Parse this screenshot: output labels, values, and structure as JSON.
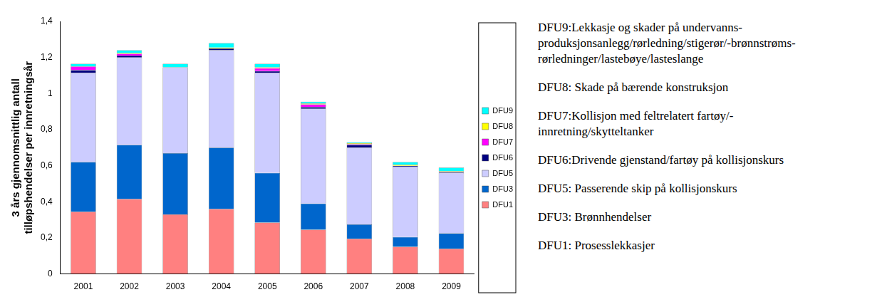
{
  "chart_data": {
    "type": "bar",
    "ylabel": [
      "3 års gjennomsnittlig antall",
      "tilløpshendelser per innretningsår"
    ],
    "categories": [
      "2001",
      "2002",
      "2003",
      "2004",
      "2005",
      "2006",
      "2007",
      "2008",
      "2009"
    ],
    "series": [
      {
        "name": "DFU1",
        "color": "#ff8080",
        "values": [
          0.345,
          0.415,
          0.33,
          0.36,
          0.285,
          0.245,
          0.195,
          0.15,
          0.14
        ]
      },
      {
        "name": "DFU3",
        "color": "#0066cc",
        "values": [
          0.275,
          0.3,
          0.34,
          0.34,
          0.275,
          0.145,
          0.08,
          0.055,
          0.085
        ]
      },
      {
        "name": "DFU5",
        "color": "#ccccff",
        "values": [
          0.495,
          0.485,
          0.475,
          0.54,
          0.555,
          0.525,
          0.425,
          0.39,
          0.335
        ]
      },
      {
        "name": "DFU6",
        "color": "#000080",
        "values": [
          0.015,
          0.01,
          0,
          0.01,
          0.01,
          0.01,
          0.015,
          0.005,
          0.005
        ]
      },
      {
        "name": "DFU7",
        "color": "#ff00ff",
        "values": [
          0.02,
          0.01,
          0,
          0,
          0.015,
          0.015,
          0.005,
          0,
          0
        ]
      },
      {
        "name": "DFU8",
        "color": "#ffff00",
        "values": [
          0,
          0.005,
          0,
          0.005,
          0.005,
          0.005,
          0.005,
          0.005,
          0.005
        ]
      },
      {
        "name": "DFU9",
        "color": "#00ffff",
        "values": [
          0.015,
          0.015,
          0.02,
          0.025,
          0.02,
          0.01,
          0.005,
          0.015,
          0.02
        ]
      }
    ],
    "ylim": [
      0,
      1.4
    ],
    "yticks": [
      0,
      {
        "value": 0.2,
        "label": "0,2"
      },
      {
        "value": 0.4,
        "label": "0,4"
      },
      {
        "value": 0.6,
        "label": "0,6"
      },
      {
        "value": 0.8,
        "label": "0,8"
      },
      1,
      {
        "value": 1.2,
        "label": "1,2"
      },
      {
        "value": 1.4,
        "label": "1,4"
      }
    ],
    "grid": false,
    "stacked": true,
    "legend": "right",
    "annotations": [
      "DFU9:Lekkasje og skader på undervanns-produksjonsanlegg/rørledning/stigerør/-brønnstrøms-rørledninger/lastebøye/lasteslange",
      "DFU8: Skade på bærende konstruksjon",
      "DFU7:Kollisjon med feltrelatert fartøy/-innretning/skytteltanker",
      "DFU6:Drivende gjenstand/fartøy på kollisjonskurs",
      "DFU5: Passerende skip på kollisjonskurs",
      "DFU3: Brønnhendelser",
      "DFU1: Prosesslekkasjer"
    ]
  }
}
